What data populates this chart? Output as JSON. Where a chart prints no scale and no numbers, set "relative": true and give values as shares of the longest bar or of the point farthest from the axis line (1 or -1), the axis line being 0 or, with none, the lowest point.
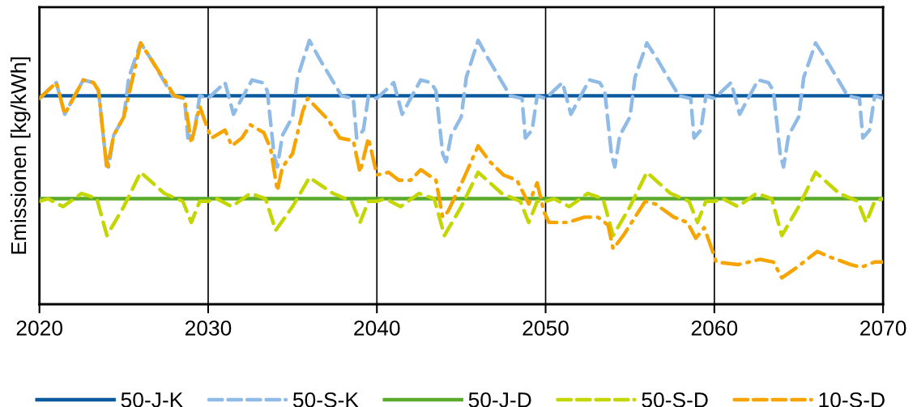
{
  "chart_data": {
    "type": "line",
    "ylabel": "Emissionen [kg/kWh]",
    "relative": true,
    "xlim": [
      2020,
      2070
    ],
    "xticks": [
      2020,
      2030,
      2040,
      2050,
      2060,
      2070
    ],
    "grid": "x",
    "legend": "bottom",
    "series": [
      {
        "name": "50-J-K",
        "color": "#0b5aa0",
        "line_style": "solid",
        "x": [
          2020,
          2070
        ],
        "values": [
          0.79,
          0.79
        ]
      },
      {
        "name": "50-S-K",
        "color": "#8fbbe6",
        "line_style": "dashed",
        "x": [
          2020,
          2021,
          2021.5,
          2022,
          2022.6,
          2023.2,
          2023.5,
          2023.9,
          2024.1,
          2024.4,
          2025,
          2025.3,
          2026,
          2026.6,
          2027.9,
          2028.6,
          2028.8,
          2029.2,
          2029.5,
          2030,
          2031,
          2031.5,
          2032,
          2032.6,
          2033.2,
          2033.5,
          2033.9,
          2034.1,
          2034.4,
          2035,
          2035.3,
          2036,
          2036.6,
          2037.9,
          2038.6,
          2038.8,
          2039.2,
          2039.5,
          2040,
          2041,
          2041.5,
          2042,
          2042.6,
          2043.2,
          2043.5,
          2043.9,
          2044.1,
          2044.4,
          2045,
          2045.3,
          2046,
          2046.6,
          2047.9,
          2048.6,
          2048.8,
          2049.2,
          2049.5,
          2050,
          2051,
          2051.5,
          2052,
          2052.6,
          2053.2,
          2053.5,
          2053.9,
          2054.1,
          2054.4,
          2055,
          2055.3,
          2056,
          2056.6,
          2057.9,
          2058.6,
          2058.8,
          2059.2,
          2059.5,
          2060,
          2061,
          2061.5,
          2062,
          2062.6,
          2063.2,
          2063.5,
          2063.9,
          2064.1,
          2064.4,
          2065,
          2065.3,
          2066,
          2066.6,
          2067.9,
          2068.6,
          2068.8,
          2069.2,
          2069.5,
          2070
        ],
        "values": [
          0.78,
          0.84,
          0.72,
          0.78,
          0.85,
          0.84,
          0.81,
          0.57,
          0.52,
          0.64,
          0.71,
          0.86,
          0.99,
          0.93,
          0.79,
          0.78,
          0.63,
          0.66,
          0.79,
          0.78,
          0.84,
          0.72,
          0.78,
          0.85,
          0.84,
          0.81,
          0.57,
          0.52,
          0.64,
          0.71,
          0.86,
          1.0,
          0.93,
          0.79,
          0.78,
          0.63,
          0.66,
          0.79,
          0.78,
          0.84,
          0.72,
          0.78,
          0.85,
          0.84,
          0.81,
          0.57,
          0.54,
          0.64,
          0.71,
          0.86,
          1.0,
          0.93,
          0.79,
          0.78,
          0.63,
          0.66,
          0.79,
          0.78,
          0.84,
          0.72,
          0.78,
          0.85,
          0.84,
          0.81,
          0.57,
          0.52,
          0.64,
          0.71,
          0.86,
          0.99,
          0.93,
          0.79,
          0.78,
          0.63,
          0.66,
          0.79,
          0.78,
          0.84,
          0.72,
          0.78,
          0.85,
          0.84,
          0.81,
          0.57,
          0.52,
          0.64,
          0.71,
          0.86,
          0.99,
          0.93,
          0.79,
          0.78,
          0.63,
          0.66,
          0.79,
          0.78
        ]
      },
      {
        "name": "50-J-D",
        "color": "#5aab2c",
        "line_style": "solid",
        "x": [
          2020,
          2070
        ],
        "values": [
          0.4,
          0.4
        ]
      },
      {
        "name": "50-S-D",
        "color": "#c3d600",
        "line_style": "dashed",
        "x": [
          2020,
          2020.5,
          2021.4,
          2022.5,
          2023.4,
          2024,
          2025,
          2026,
          2027.4,
          2028.5,
          2029,
          2029.5,
          2030,
          2030.5,
          2031.4,
          2032.5,
          2033.4,
          2034,
          2035,
          2036,
          2037.4,
          2038.5,
          2039,
          2039.5,
          2040,
          2040.5,
          2041.4,
          2042.5,
          2043.4,
          2044,
          2045,
          2046,
          2047.4,
          2048.5,
          2049,
          2049.5,
          2050,
          2050.5,
          2051.4,
          2052.5,
          2053.4,
          2054,
          2055,
          2056,
          2057.4,
          2058.5,
          2059,
          2059.5,
          2060,
          2060.5,
          2061.4,
          2062.5,
          2063.4,
          2064,
          2065,
          2066,
          2067.4,
          2068.5,
          2069,
          2069.5,
          2070
        ],
        "values": [
          0.39,
          0.4,
          0.37,
          0.42,
          0.4,
          0.26,
          0.37,
          0.5,
          0.42,
          0.39,
          0.31,
          0.39,
          0.39,
          0.4,
          0.37,
          0.42,
          0.4,
          0.28,
          0.37,
          0.48,
          0.42,
          0.39,
          0.31,
          0.39,
          0.39,
          0.4,
          0.37,
          0.42,
          0.4,
          0.26,
          0.37,
          0.5,
          0.42,
          0.39,
          0.31,
          0.39,
          0.39,
          0.4,
          0.37,
          0.42,
          0.4,
          0.26,
          0.37,
          0.5,
          0.42,
          0.39,
          0.31,
          0.39,
          0.39,
          0.4,
          0.37,
          0.42,
          0.4,
          0.26,
          0.37,
          0.5,
          0.42,
          0.39,
          0.31,
          0.39,
          0.4
        ]
      },
      {
        "name": "10-S-D",
        "color": "#f5a400",
        "line_style": "dashdot",
        "x": [
          2020,
          2021,
          2021.5,
          2022,
          2022.6,
          2023.2,
          2023.5,
          2024,
          2024.4,
          2025,
          2026,
          2026.6,
          2028,
          2028.6,
          2029,
          2029.5,
          2030,
          2030.2,
          2031,
          2031.4,
          2032,
          2032.5,
          2033.3,
          2033.7,
          2034.1,
          2034.4,
          2035,
          2035.6,
          2035.9,
          2037.1,
          2037.8,
          2038.6,
          2039,
          2039.5,
          2040,
          2040.7,
          2041.3,
          2042,
          2042.6,
          2043.5,
          2043.9,
          2044.2,
          2045.1,
          2046,
          2046.7,
          2047.5,
          2048.3,
          2049,
          2049.5,
          2049.9,
          2050.2,
          2051.3,
          2052.3,
          2053.1,
          2053.7,
          2054,
          2054.6,
          2055.9,
          2056.5,
          2057.6,
          2058.4,
          2058.9,
          2059.4,
          2059.9,
          2060.1,
          2061.4,
          2062.7,
          2063.5,
          2064,
          2064.9,
          2066.1,
          2066.8,
          2068.1,
          2068.7,
          2069.5,
          2070
        ],
        "values": [
          0.78,
          0.84,
          0.72,
          0.78,
          0.85,
          0.84,
          0.81,
          0.51,
          0.64,
          0.71,
          0.99,
          0.93,
          0.79,
          0.78,
          0.61,
          0.75,
          0.66,
          0.63,
          0.66,
          0.6,
          0.63,
          0.68,
          0.65,
          0.59,
          0.43,
          0.52,
          0.57,
          0.73,
          0.78,
          0.7,
          0.63,
          0.62,
          0.5,
          0.63,
          0.49,
          0.5,
          0.47,
          0.47,
          0.51,
          0.47,
          0.33,
          0.35,
          0.47,
          0.6,
          0.54,
          0.49,
          0.47,
          0.38,
          0.46,
          0.35,
          0.31,
          0.31,
          0.33,
          0.33,
          0.3,
          0.21,
          0.26,
          0.39,
          0.38,
          0.33,
          0.31,
          0.25,
          0.29,
          0.2,
          0.16,
          0.15,
          0.17,
          0.16,
          0.1,
          0.14,
          0.2,
          0.18,
          0.15,
          0.14,
          0.16,
          0.16
        ]
      }
    ]
  }
}
